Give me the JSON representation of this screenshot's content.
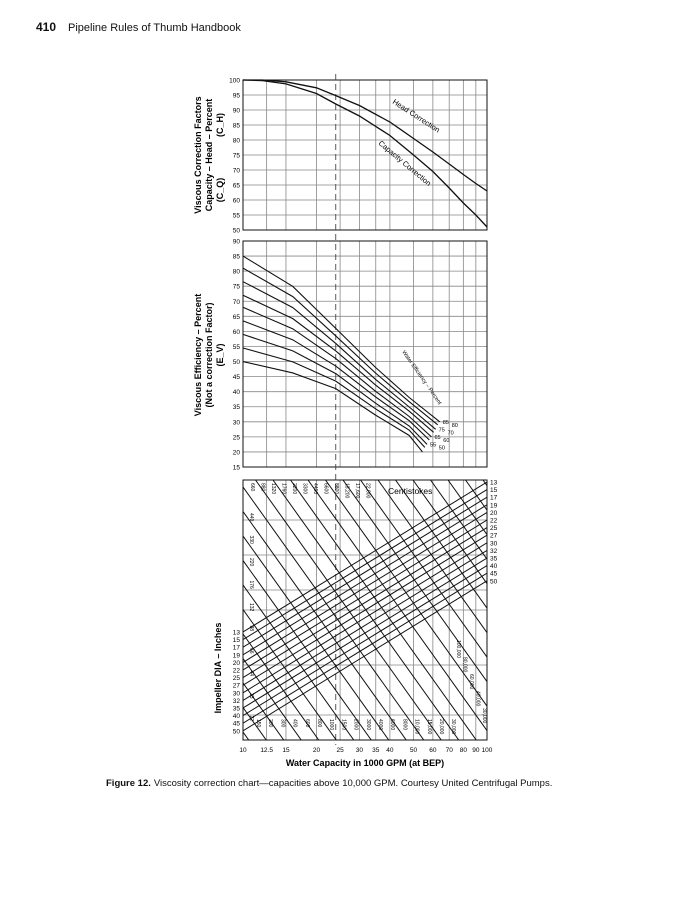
{
  "header": {
    "page_number": "410",
    "book_title": "Pipeline Rules of Thumb Handbook"
  },
  "caption": {
    "label": "Figure 12.",
    "text": "Viscosity correction chart—capacities above 10,000 GPM. Courtesy United Centrifugal Pumps."
  },
  "figure": {
    "x_axis": {
      "title": "Water Capacity in 1000 GPM (at BEP)",
      "ticks": [
        "10",
        "12.5",
        "15",
        "20",
        "25",
        "30",
        "35",
        "40",
        "50",
        "60",
        "70",
        "80",
        "90",
        "100"
      ],
      "tick_values": [
        10,
        12.5,
        15,
        20,
        25,
        30,
        35,
        40,
        50,
        60,
        70,
        80,
        90,
        100
      ],
      "range": [
        10,
        100
      ],
      "scale": "log"
    },
    "top_panel": {
      "ylabel_lines": [
        "Viscous Correction Factors",
        "Capacity – Head – Percent",
        "(C_H)",
        "(C_Q)"
      ],
      "yticks": [
        "100",
        "95",
        "90",
        "85",
        "80",
        "75",
        "70",
        "65",
        "60",
        "55",
        "50"
      ],
      "curves": [
        {
          "name": "Head Correction",
          "x": [
            10,
            12,
            15,
            20,
            24,
            30,
            40,
            50,
            60,
            70,
            80,
            90,
            100
          ],
          "y": [
            100,
            100,
            99.4,
            97.4,
            94.8,
            91.5,
            86,
            80.5,
            76,
            72,
            68.5,
            65.5,
            63
          ]
        },
        {
          "name": "Capacity Correction",
          "x": [
            10,
            12,
            15,
            20,
            24,
            30,
            40,
            50,
            60,
            70,
            80,
            90,
            100
          ],
          "y": [
            100,
            99.8,
            98.7,
            95.5,
            92,
            88,
            81.5,
            75,
            69.5,
            64,
            59,
            55,
            51
          ]
        }
      ]
    },
    "middle_panel": {
      "ylabel_lines": [
        "Viscous Efficiency – Percent",
        "(Not a correction Factor)",
        "(E_V)"
      ],
      "yticks": [
        "90",
        "85",
        "80",
        "75",
        "70",
        "65",
        "60",
        "55",
        "50",
        "45",
        "40",
        "35",
        "30",
        "25",
        "20",
        "15"
      ],
      "annotation": "Water Efficiency – Percent",
      "curves": [
        {
          "label": "85",
          "start": 85,
          "mid": 61,
          "end": 30
        },
        {
          "label": "80",
          "start": 81,
          "mid": 58.5,
          "end": 29
        },
        {
          "label": "75",
          "start": 76.5,
          "mid": 56,
          "end": 27.5
        },
        {
          "label": "70",
          "start": 72,
          "mid": 53.5,
          "end": 26.5
        },
        {
          "label": "65",
          "start": 68,
          "mid": 51,
          "end": 25
        },
        {
          "label": "60",
          "start": 63.5,
          "mid": 48.5,
          "end": 24
        },
        {
          "label": "55",
          "start": 59,
          "mid": 46,
          "end": 22.5
        },
        {
          "label": "50",
          "start": 54.5,
          "mid": 43.5,
          "end": 21.5
        },
        {
          "label": "",
          "start": 50,
          "mid": 41,
          "end": 20
        }
      ]
    },
    "bottom_panel": {
      "ylabel": "Impeller DIA – Inches",
      "centistokes_label": "Centistokes",
      "impeller_ticks_left": [
        "13",
        "15",
        "17",
        "19",
        "20",
        "22",
        "25",
        "27",
        "30",
        "32",
        "35",
        "40",
        "45",
        "50"
      ],
      "impeller_ticks_right": [
        "13",
        "15",
        "17",
        "19",
        "20",
        "22",
        "25",
        "27",
        "30",
        "32",
        "35",
        "40",
        "45",
        "50"
      ],
      "viscosity_top": [
        "660",
        "880",
        "1320",
        "1760",
        "2200",
        "3300",
        "4400",
        "6600",
        "8800",
        "13,200",
        "17,600",
        "22,000"
      ],
      "viscosity_left": [
        "440",
        "330",
        "220",
        "176",
        "132",
        "88",
        "66",
        "44",
        "33",
        "22"
      ],
      "viscosity_bottom": [
        "150",
        "200",
        "300",
        "400",
        "600",
        "800",
        "1000",
        "1500",
        "2000",
        "3000",
        "4000",
        "6000",
        "8000",
        "10,000",
        "15,000",
        "20,000",
        "30,000"
      ],
      "viscosity_right": [
        "100,000",
        "80,000",
        "60,000",
        "40,000",
        "30,000"
      ]
    }
  }
}
